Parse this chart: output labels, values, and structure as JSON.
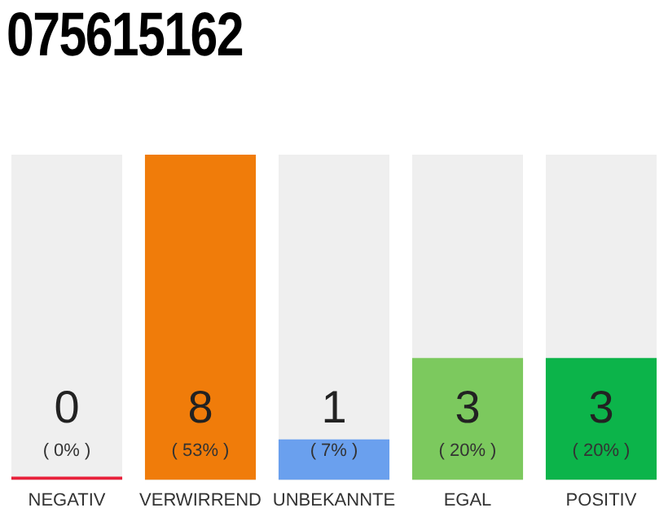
{
  "chart_data": {
    "type": "bar",
    "title": "075615162",
    "categories": [
      "NEGATIV",
      "VERWIRREND",
      "UNBEKANNTE",
      "EGAL",
      "POSITIV"
    ],
    "values": [
      0,
      8,
      1,
      3,
      3
    ],
    "colors": [
      "#e8203a",
      "#f07c0a",
      "#6aa0ee",
      "#7cc95e",
      "#0cb44a"
    ],
    "data_labels": true,
    "annotations": [
      "( 0% )",
      "( 53% )",
      "( 7% )",
      "( 20% )",
      "( 20% )"
    ],
    "grid": false,
    "legend": false
  }
}
